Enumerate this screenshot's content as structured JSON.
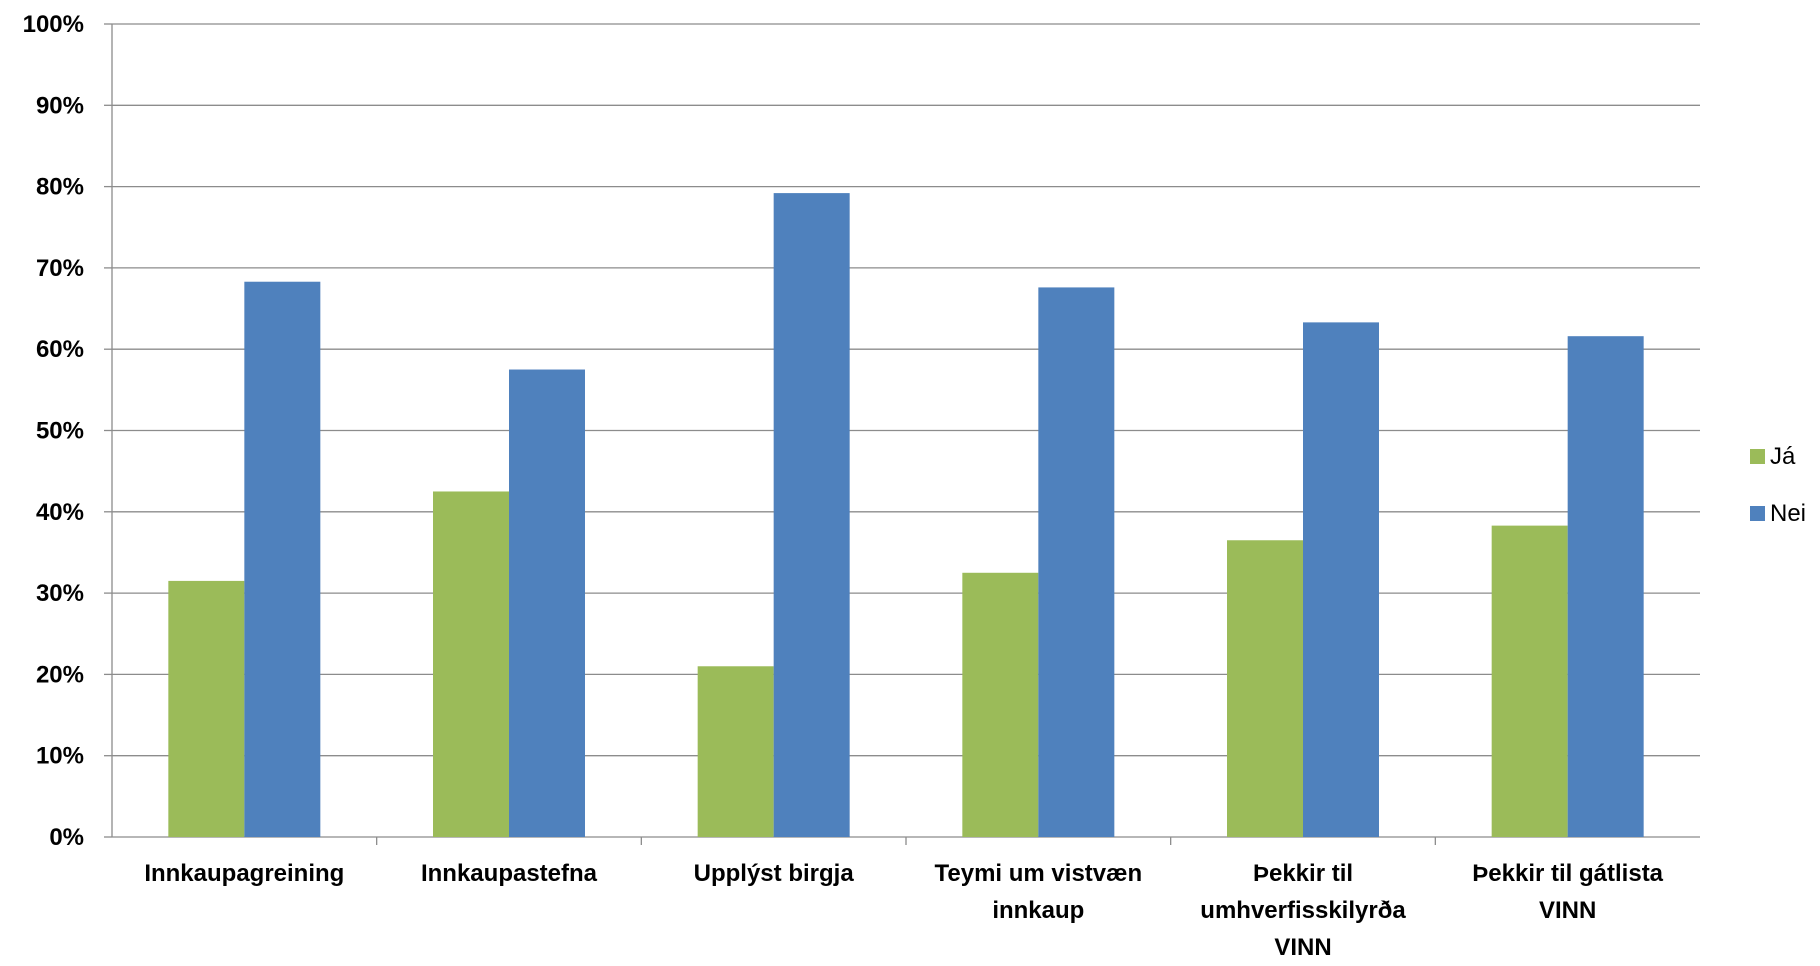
{
  "chart_data": {
    "type": "bar",
    "categories": [
      [
        "Innkaupagreining"
      ],
      [
        "Innkaupastefna"
      ],
      [
        "Upplýst birgja"
      ],
      [
        "Teymi um vistvæn",
        "innkaup"
      ],
      [
        "Þekkir til",
        "umhverfisskilyrða",
        "VINN"
      ],
      [
        "Þekkir til gátlista",
        "VINN"
      ]
    ],
    "series": [
      {
        "name": "Já",
        "color": "#9BBB59",
        "values": [
          31.5,
          42.5,
          21,
          32.5,
          36.5,
          38.3
        ]
      },
      {
        "name": "Nei",
        "color": "#4F81BD",
        "values": [
          68.3,
          57.5,
          79.2,
          67.6,
          63.3,
          61.6
        ]
      }
    ],
    "ylim": [
      0,
      100
    ],
    "ytick_step": 10,
    "ytick_labels": [
      "0%",
      "10%",
      "20%",
      "30%",
      "40%",
      "50%",
      "60%",
      "70%",
      "80%",
      "90%",
      "100%"
    ],
    "xlabel": "",
    "ylabel": "",
    "title": "",
    "grid": true,
    "legend_position": "right"
  }
}
